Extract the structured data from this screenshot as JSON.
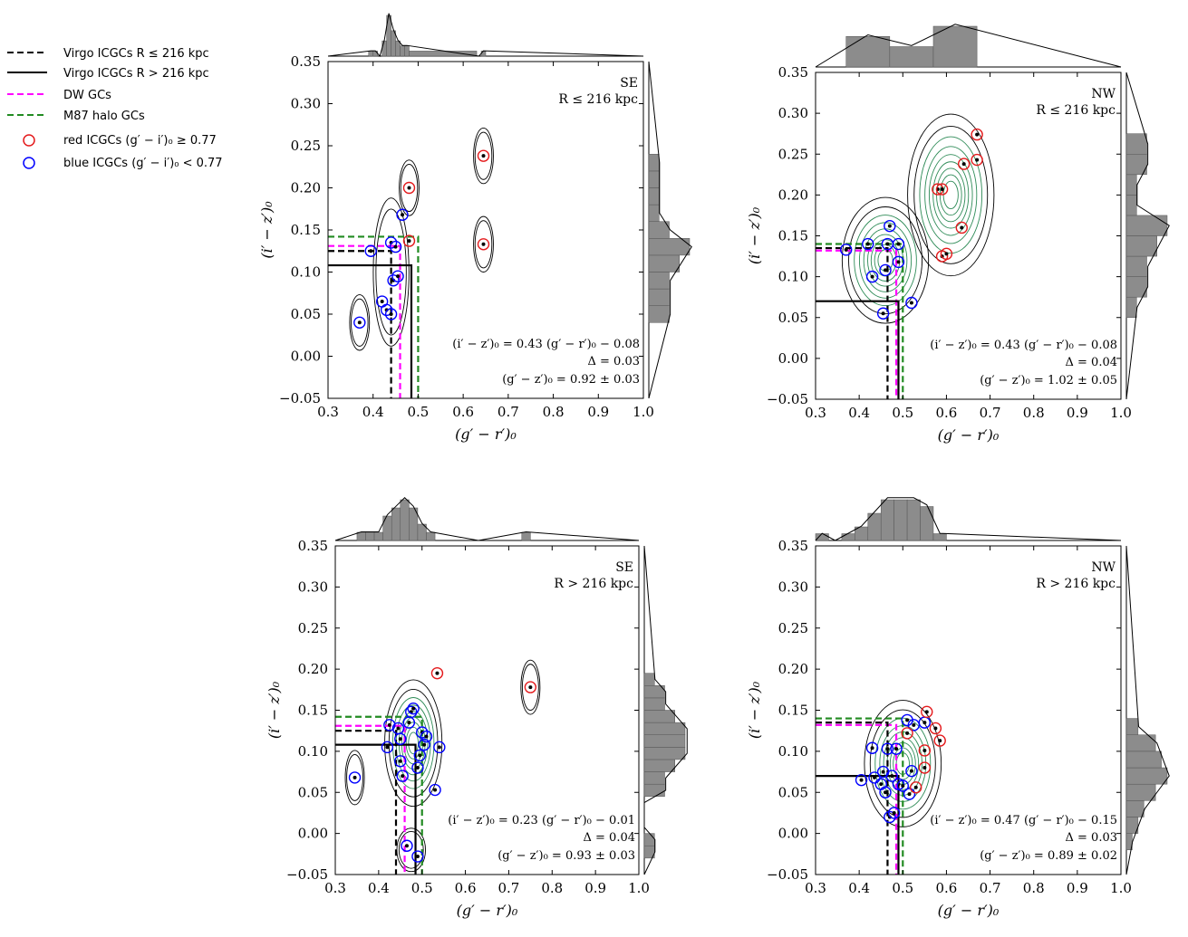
{
  "legend": {
    "placement": "top-left",
    "entries": [
      {
        "label": "Virgo ICGCs R ≤ 216 kpc",
        "style": "dashed",
        "color": "#000000"
      },
      {
        "label": "Virgo ICGCs R > 216 kpc",
        "style": "solid",
        "color": "#000000"
      },
      {
        "label": "DW GCs",
        "style": "dashed",
        "color": "#ff00ff"
      },
      {
        "label": "M87 halo GCs",
        "style": "dashed",
        "color": "#228b22"
      },
      {
        "label": "red ICGCs (g′ − i′)₀ ≥ 0.77",
        "style": "circle",
        "color": "#e41a1c"
      },
      {
        "label": "blue ICGCs (g′ − i′)₀ < 0.77",
        "style": "circle",
        "color": "#0000ff"
      }
    ]
  },
  "colors": {
    "red_marker": "#e41a1c",
    "blue_marker": "#0000ff",
    "dw": "#ff00ff",
    "m87": "#228b22",
    "contour_outer": "#000000",
    "contour_inner": "#2e8b57",
    "hist": "#8c8c8c"
  },
  "chart_data": [
    {
      "type": "scatter",
      "region": "SE",
      "radius_label": "R ≤ 216 kpc",
      "xlabel": "(g′ − r′)₀",
      "ylabel": "(i′ − z′)₀",
      "xlim": [
        0.3,
        1.0
      ],
      "ylim": [
        -0.05,
        0.35
      ],
      "xticks": [
        "0.3",
        "0.4",
        "0.5",
        "0.6",
        "0.7",
        "0.8",
        "0.9",
        "1.0"
      ],
      "yticks": [
        "−0.05",
        "0.00",
        "0.05",
        "0.10",
        "0.15",
        "0.20",
        "0.25",
        "0.30",
        "0.35"
      ],
      "fit_text": "(i′ − z′)₀ = 0.43 (g′ − r′)₀ − 0.08",
      "delta_text": "Δ = 0.03",
      "gz_text": "(g′ − z′)₀ = 0.92 ± 0.03",
      "virgo_inner": {
        "gr": 0.44,
        "iz": 0.125
      },
      "virgo_outer": {
        "gr": 0.485,
        "iz": 0.108
      },
      "dw": {
        "gr": 0.46,
        "iz": 0.131
      },
      "m87": {
        "gr": 0.5,
        "iz": 0.142
      },
      "points": [
        {
          "gr": 0.37,
          "iz": 0.04,
          "c": "blue"
        },
        {
          "gr": 0.395,
          "iz": 0.125,
          "c": "blue"
        },
        {
          "gr": 0.42,
          "iz": 0.065,
          "c": "blue"
        },
        {
          "gr": 0.43,
          "iz": 0.055,
          "c": "blue"
        },
        {
          "gr": 0.44,
          "iz": 0.05,
          "c": "blue"
        },
        {
          "gr": 0.44,
          "iz": 0.135,
          "c": "blue"
        },
        {
          "gr": 0.445,
          "iz": 0.09,
          "c": "blue"
        },
        {
          "gr": 0.45,
          "iz": 0.13,
          "c": "blue"
        },
        {
          "gr": 0.455,
          "iz": 0.095,
          "c": "blue"
        },
        {
          "gr": 0.465,
          "iz": 0.168,
          "c": "blue"
        },
        {
          "gr": 0.48,
          "iz": 0.2,
          "c": "red"
        },
        {
          "gr": 0.48,
          "iz": 0.137,
          "c": "red"
        },
        {
          "gr": 0.645,
          "iz": 0.238,
          "c": "red"
        },
        {
          "gr": 0.645,
          "iz": 0.133,
          "c": "red"
        }
      ],
      "kde_peaks": [
        {
          "gr": 0.44,
          "iz": 0.1,
          "sx": 0.018,
          "sy": 0.04
        },
        {
          "gr": 0.37,
          "iz": 0.04,
          "sx": 0.01,
          "sy": 0.015
        },
        {
          "gr": 0.48,
          "iz": 0.2,
          "sx": 0.01,
          "sy": 0.015
        },
        {
          "gr": 0.645,
          "iz": 0.238,
          "sx": 0.01,
          "sy": 0.015
        },
        {
          "gr": 0.645,
          "iz": 0.133,
          "sx": 0.01,
          "sy": 0.015
        }
      ],
      "hist_x": {
        "edges": [
          0.39,
          0.4,
          0.41,
          0.42,
          0.43,
          0.44,
          0.45,
          0.46,
          0.47,
          0.48,
          0.63,
          0.64,
          0.65
        ],
        "counts": [
          1,
          1,
          0,
          3,
          8,
          5,
          3,
          2,
          2,
          1,
          0,
          1
        ]
      },
      "hist_y": {
        "edges": [
          0.04,
          0.06,
          0.08,
          0.1,
          0.12,
          0.14,
          0.16,
          0.18,
          0.2,
          0.22,
          0.24
        ],
        "counts": [
          2,
          2,
          2,
          3,
          4,
          2,
          1,
          1,
          1,
          1
        ]
      }
    },
    {
      "type": "scatter",
      "region": "NW",
      "radius_label": "R ≤ 216 kpc",
      "xlabel": "(g′ − r′)₀",
      "ylabel": "(i′ − z′)₀",
      "xlim": [
        0.3,
        1.0
      ],
      "ylim": [
        -0.05,
        0.35
      ],
      "xticks": [
        "0.3",
        "0.4",
        "0.5",
        "0.6",
        "0.7",
        "0.8",
        "0.9",
        "1.0"
      ],
      "yticks": [
        "−0.05",
        "0.00",
        "0.05",
        "0.10",
        "0.15",
        "0.20",
        "0.25",
        "0.30",
        "0.35"
      ],
      "fit_text": "(i′ − z′)₀ = 0.43 (g′ − r′)₀ − 0.08",
      "delta_text": "Δ = 0.04",
      "gz_text": "(g′ − z′)₀ = 1.02 ± 0.05",
      "virgo_inner": {
        "gr": 0.465,
        "iz": 0.135
      },
      "virgo_outer": {
        "gr": 0.49,
        "iz": 0.07
      },
      "dw": {
        "gr": 0.485,
        "iz": 0.132
      },
      "m87": {
        "gr": 0.5,
        "iz": 0.14
      },
      "points": [
        {
          "gr": 0.37,
          "iz": 0.133,
          "c": "blue"
        },
        {
          "gr": 0.42,
          "iz": 0.14,
          "c": "blue"
        },
        {
          "gr": 0.43,
          "iz": 0.1,
          "c": "blue"
        },
        {
          "gr": 0.455,
          "iz": 0.055,
          "c": "blue"
        },
        {
          "gr": 0.46,
          "iz": 0.108,
          "c": "blue"
        },
        {
          "gr": 0.465,
          "iz": 0.14,
          "c": "blue"
        },
        {
          "gr": 0.47,
          "iz": 0.162,
          "c": "blue"
        },
        {
          "gr": 0.49,
          "iz": 0.14,
          "c": "blue"
        },
        {
          "gr": 0.49,
          "iz": 0.118,
          "c": "blue"
        },
        {
          "gr": 0.52,
          "iz": 0.068,
          "c": "blue"
        },
        {
          "gr": 0.58,
          "iz": 0.207,
          "c": "red"
        },
        {
          "gr": 0.59,
          "iz": 0.207,
          "c": "red"
        },
        {
          "gr": 0.59,
          "iz": 0.125,
          "c": "red"
        },
        {
          "gr": 0.6,
          "iz": 0.128,
          "c": "red"
        },
        {
          "gr": 0.635,
          "iz": 0.16,
          "c": "red"
        },
        {
          "gr": 0.64,
          "iz": 0.238,
          "c": "red"
        },
        {
          "gr": 0.67,
          "iz": 0.274,
          "c": "red"
        },
        {
          "gr": 0.67,
          "iz": 0.243,
          "c": "red"
        }
      ],
      "kde_peaks": [
        {
          "gr": 0.46,
          "iz": 0.12,
          "sx": 0.045,
          "sy": 0.035
        },
        {
          "gr": 0.61,
          "iz": 0.2,
          "sx": 0.045,
          "sy": 0.045
        }
      ],
      "hist_x": {
        "edges": [
          0.37,
          0.47,
          0.57,
          0.67
        ],
        "counts": [
          3,
          2,
          4
        ]
      },
      "hist_y": {
        "edges": [
          0.05,
          0.075,
          0.1,
          0.125,
          0.15,
          0.175,
          0.2,
          0.225,
          0.25,
          0.275
        ],
        "counts": [
          1,
          2,
          2,
          3,
          4,
          1,
          1,
          2,
          2
        ]
      }
    },
    {
      "type": "scatter",
      "region": "SE",
      "radius_label": "R > 216 kpc",
      "xlabel": "(g′ − r′)₀",
      "ylabel": "(i′ − z′)₀",
      "xlim": [
        0.3,
        1.0
      ],
      "ylim": [
        -0.05,
        0.35
      ],
      "xticks": [
        "0.3",
        "0.4",
        "0.5",
        "0.6",
        "0.7",
        "0.8",
        "0.9",
        "1.0"
      ],
      "yticks": [
        "−0.05",
        "0.00",
        "0.05",
        "0.10",
        "0.15",
        "0.20",
        "0.25",
        "0.30",
        "0.35"
      ],
      "fit_text": "(i′ − z′)₀ = 0.23 (g′ − r′)₀ − 0.01",
      "delta_text": "Δ = 0.04",
      "gz_text": "(g′ − z′)₀ = 0.93 ± 0.03",
      "virgo_inner": {
        "gr": 0.44,
        "iz": 0.125
      },
      "virgo_outer": {
        "gr": 0.485,
        "iz": 0.108
      },
      "dw": {
        "gr": 0.46,
        "iz": 0.131
      },
      "m87": {
        "gr": 0.5,
        "iz": 0.142
      },
      "points": [
        {
          "gr": 0.345,
          "iz": 0.068,
          "c": "blue"
        },
        {
          "gr": 0.42,
          "iz": 0.105,
          "c": "blue"
        },
        {
          "gr": 0.425,
          "iz": 0.132,
          "c": "blue"
        },
        {
          "gr": 0.445,
          "iz": 0.128,
          "c": "blue"
        },
        {
          "gr": 0.45,
          "iz": 0.115,
          "c": "blue"
        },
        {
          "gr": 0.45,
          "iz": 0.088,
          "c": "blue"
        },
        {
          "gr": 0.455,
          "iz": 0.07,
          "c": "blue"
        },
        {
          "gr": 0.465,
          "iz": -0.015,
          "c": "blue"
        },
        {
          "gr": 0.47,
          "iz": 0.135,
          "c": "blue"
        },
        {
          "gr": 0.475,
          "iz": 0.148,
          "c": "blue"
        },
        {
          "gr": 0.48,
          "iz": 0.152,
          "c": "blue"
        },
        {
          "gr": 0.49,
          "iz": 0.08,
          "c": "blue"
        },
        {
          "gr": 0.49,
          "iz": -0.028,
          "c": "blue"
        },
        {
          "gr": 0.495,
          "iz": 0.095,
          "c": "blue"
        },
        {
          "gr": 0.5,
          "iz": 0.123,
          "c": "blue"
        },
        {
          "gr": 0.505,
          "iz": 0.108,
          "c": "blue"
        },
        {
          "gr": 0.51,
          "iz": 0.118,
          "c": "blue"
        },
        {
          "gr": 0.53,
          "iz": 0.053,
          "c": "blue"
        },
        {
          "gr": 0.54,
          "iz": 0.105,
          "c": "blue"
        },
        {
          "gr": 0.535,
          "iz": 0.195,
          "c": "red"
        },
        {
          "gr": 0.75,
          "iz": 0.178,
          "c": "red"
        }
      ],
      "kde_peaks": [
        {
          "gr": 0.48,
          "iz": 0.11,
          "sx": 0.03,
          "sy": 0.035
        },
        {
          "gr": 0.345,
          "iz": 0.068,
          "sx": 0.01,
          "sy": 0.015
        },
        {
          "gr": 0.75,
          "iz": 0.178,
          "sx": 0.01,
          "sy": 0.015
        },
        {
          "gr": 0.475,
          "iz": -0.02,
          "sx": 0.015,
          "sy": 0.012
        }
      ],
      "hist_x": {
        "edges": [
          0.35,
          0.37,
          0.39,
          0.41,
          0.43,
          0.45,
          0.47,
          0.49,
          0.51,
          0.53,
          0.73,
          0.75
        ],
        "counts": [
          1,
          1,
          1,
          3,
          4,
          5,
          4,
          2,
          1,
          0,
          1
        ]
      },
      "hist_y": {
        "edges": [
          -0.03,
          -0.015,
          0.0,
          0.015,
          0.03,
          0.045,
          0.06,
          0.075,
          0.09,
          0.105,
          0.12,
          0.135,
          0.15,
          0.165,
          0.18,
          0.195
        ],
        "counts": [
          1,
          1,
          0,
          0,
          0,
          2,
          2,
          3,
          4,
          4,
          4,
          3,
          2,
          2,
          1
        ]
      }
    },
    {
      "type": "scatter",
      "region": "NW",
      "radius_label": "R > 216 kpc",
      "xlabel": "(g′ − r′)₀",
      "ylabel": "(i′ − z′)₀",
      "xlim": [
        0.3,
        1.0
      ],
      "ylim": [
        -0.05,
        0.35
      ],
      "xticks": [
        "0.3",
        "0.4",
        "0.5",
        "0.6",
        "0.7",
        "0.8",
        "0.9",
        "1.0"
      ],
      "yticks": [
        "−0.05",
        "0.00",
        "0.05",
        "0.10",
        "0.15",
        "0.20",
        "0.25",
        "0.30",
        "0.35"
      ],
      "fit_text": "(i′ − z′)₀ = 0.47 (g′ − r′)₀ − 0.15",
      "delta_text": "Δ = 0.03",
      "gz_text": "(g′ − z′)₀ = 0.89 ± 0.02",
      "virgo_inner": {
        "gr": 0.465,
        "iz": 0.135
      },
      "virgo_outer": {
        "gr": 0.49,
        "iz": 0.07
      },
      "dw": {
        "gr": 0.485,
        "iz": 0.132
      },
      "m87": {
        "gr": 0.5,
        "iz": 0.14
      },
      "points": [
        {
          "gr": 0.405,
          "iz": 0.065,
          "c": "blue"
        },
        {
          "gr": 0.43,
          "iz": 0.104,
          "c": "blue"
        },
        {
          "gr": 0.435,
          "iz": 0.068,
          "c": "blue"
        },
        {
          "gr": 0.45,
          "iz": 0.06,
          "c": "blue"
        },
        {
          "gr": 0.455,
          "iz": 0.075,
          "c": "blue"
        },
        {
          "gr": 0.46,
          "iz": 0.05,
          "c": "blue"
        },
        {
          "gr": 0.465,
          "iz": 0.103,
          "c": "blue"
        },
        {
          "gr": 0.47,
          "iz": 0.02,
          "c": "blue"
        },
        {
          "gr": 0.475,
          "iz": 0.07,
          "c": "blue"
        },
        {
          "gr": 0.48,
          "iz": 0.025,
          "c": "blue"
        },
        {
          "gr": 0.485,
          "iz": 0.103,
          "c": "blue"
        },
        {
          "gr": 0.49,
          "iz": 0.06,
          "c": "blue"
        },
        {
          "gr": 0.5,
          "iz": 0.058,
          "c": "blue"
        },
        {
          "gr": 0.51,
          "iz": 0.138,
          "c": "blue"
        },
        {
          "gr": 0.515,
          "iz": 0.048,
          "c": "blue"
        },
        {
          "gr": 0.52,
          "iz": 0.076,
          "c": "blue"
        },
        {
          "gr": 0.525,
          "iz": 0.132,
          "c": "blue"
        },
        {
          "gr": 0.55,
          "iz": 0.135,
          "c": "blue"
        },
        {
          "gr": 0.51,
          "iz": 0.122,
          "c": "red"
        },
        {
          "gr": 0.53,
          "iz": 0.056,
          "c": "red"
        },
        {
          "gr": 0.55,
          "iz": 0.08,
          "c": "red"
        },
        {
          "gr": 0.55,
          "iz": 0.101,
          "c": "red"
        },
        {
          "gr": 0.555,
          "iz": 0.148,
          "c": "red"
        },
        {
          "gr": 0.575,
          "iz": 0.128,
          "c": "red"
        },
        {
          "gr": 0.585,
          "iz": 0.113,
          "c": "red"
        }
      ],
      "kde_peaks": [
        {
          "gr": 0.5,
          "iz": 0.085,
          "sx": 0.04,
          "sy": 0.035
        }
      ],
      "hist_x": {
        "edges": [
          0.3,
          0.33,
          0.36,
          0.39,
          0.42,
          0.45,
          0.48,
          0.51,
          0.54,
          0.57,
          0.6
        ],
        "counts": [
          1,
          0,
          1,
          2,
          4,
          6,
          6,
          6,
          5,
          1
        ]
      },
      "hist_y": {
        "edges": [
          -0.02,
          0.0,
          0.02,
          0.04,
          0.06,
          0.08,
          0.1,
          0.12,
          0.14
        ],
        "counts": [
          1,
          2,
          3,
          5,
          7,
          6,
          5,
          2
        ]
      }
    }
  ]
}
